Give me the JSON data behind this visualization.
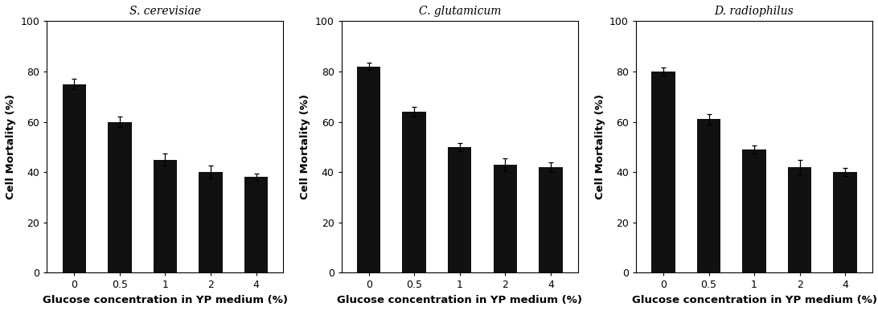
{
  "panels": [
    {
      "title": "S. cerevisiae",
      "values": [
        75,
        60,
        45,
        40,
        38
      ],
      "errors": [
        2.0,
        2.0,
        2.5,
        2.5,
        1.5
      ]
    },
    {
      "title": "C. glutamicum",
      "values": [
        82,
        64,
        50,
        43,
        42
      ],
      "errors": [
        1.5,
        2.0,
        1.5,
        2.5,
        2.0
      ]
    },
    {
      "title": "D. radiophilus",
      "values": [
        80,
        61,
        49,
        42,
        40
      ],
      "errors": [
        1.5,
        2.0,
        1.5,
        3.0,
        1.5
      ]
    }
  ],
  "categories": [
    "0",
    "0.5",
    "1",
    "2",
    "4"
  ],
  "xlabel": "Glucose concentration in YP medium (%)",
  "ylabel": "Cell Mortality (%)",
  "ylim": [
    0,
    100
  ],
  "yticks": [
    0,
    20,
    40,
    60,
    80,
    100
  ],
  "bar_color": "#111111",
  "bar_width": 0.52,
  "background_color": "#ffffff",
  "title_fontsize": 10,
  "axis_label_fontsize": 9.5,
  "tick_fontsize": 9
}
